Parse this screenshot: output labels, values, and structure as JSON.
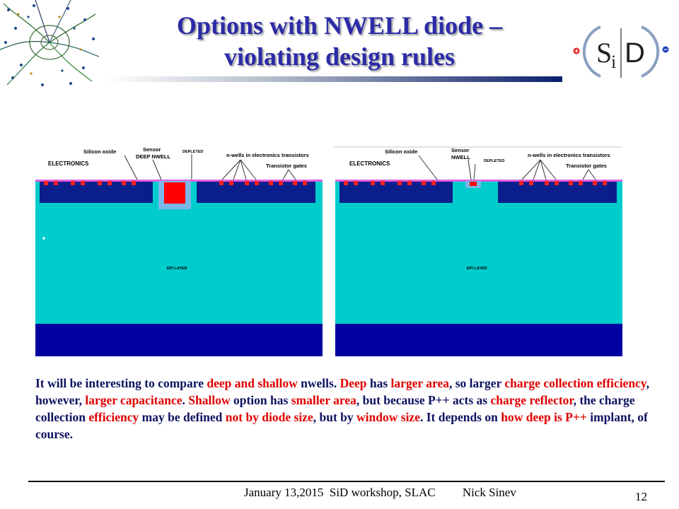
{
  "title": {
    "line1": "Options with NWELL diode –",
    "line2": "violating design rules"
  },
  "logo": {
    "text_s": "S",
    "text_i": "i",
    "text_d": "D"
  },
  "diagram_left": {
    "label_electronics": "ELECTRONICS",
    "label_silicon_oxide": "Silicon oxide",
    "label_sensor": "Sensor",
    "label_deep_nwell": "DEEP NWELL",
    "label_depleted": "DEPLETED",
    "label_nwells": "n-wells in electronics transistors",
    "label_transistor_gates": "Transistor gates",
    "label_epi": "EPI LAYER"
  },
  "diagram_right": {
    "label_electronics": "ELECTRONICS",
    "label_silicon_oxide": "Silicon oxide",
    "label_sensor": "Sensor",
    "label_nwell": "NWELL",
    "label_depleted": "DEPLETED",
    "label_nwells": "n-wells in electronics transistors",
    "label_transistor_gates": "Transistor gates",
    "label_epi": "EPI LAYER"
  },
  "body": {
    "s1": "It will be interesting  to compare ",
    "h1": "deep and shallow",
    "s2": " nwells. ",
    "h2": "Deep",
    "s3": " has ",
    "h3": "larger area",
    "s4": ", so larger ",
    "h4": "charge collection efficiency",
    "s5": ", however, ",
    "h5": "larger capacitance",
    "s6": ". ",
    "h6": "Shallow",
    "s7": " option has ",
    "h7": "smaller area",
    "s8": ", but because P++ acts as ",
    "h8": "charge reflector",
    "s9": ", the charge collection ",
    "h9": "efficiency",
    "s10": " may be defined ",
    "h10": "not by diode size",
    "s11": ", but by ",
    "h11": "window size",
    "s12": ". It depends on ",
    "h12": "how deep is P++",
    "s13": "  implant, of course."
  },
  "footer": {
    "text": "January 13,2015  SiD workshop, SLAC         Nick Sinev",
    "page": "12"
  },
  "colors": {
    "title": "#2b2ba8",
    "body_text": "#0d1260",
    "highlight": "#e00000",
    "epi": "#00cccc",
    "substrate": "#0000a0",
    "electronics": "#0b1f8c",
    "nwell_outline": "#7ab8e8",
    "depleted": "#ff0000",
    "oxide": "#e060e0"
  }
}
